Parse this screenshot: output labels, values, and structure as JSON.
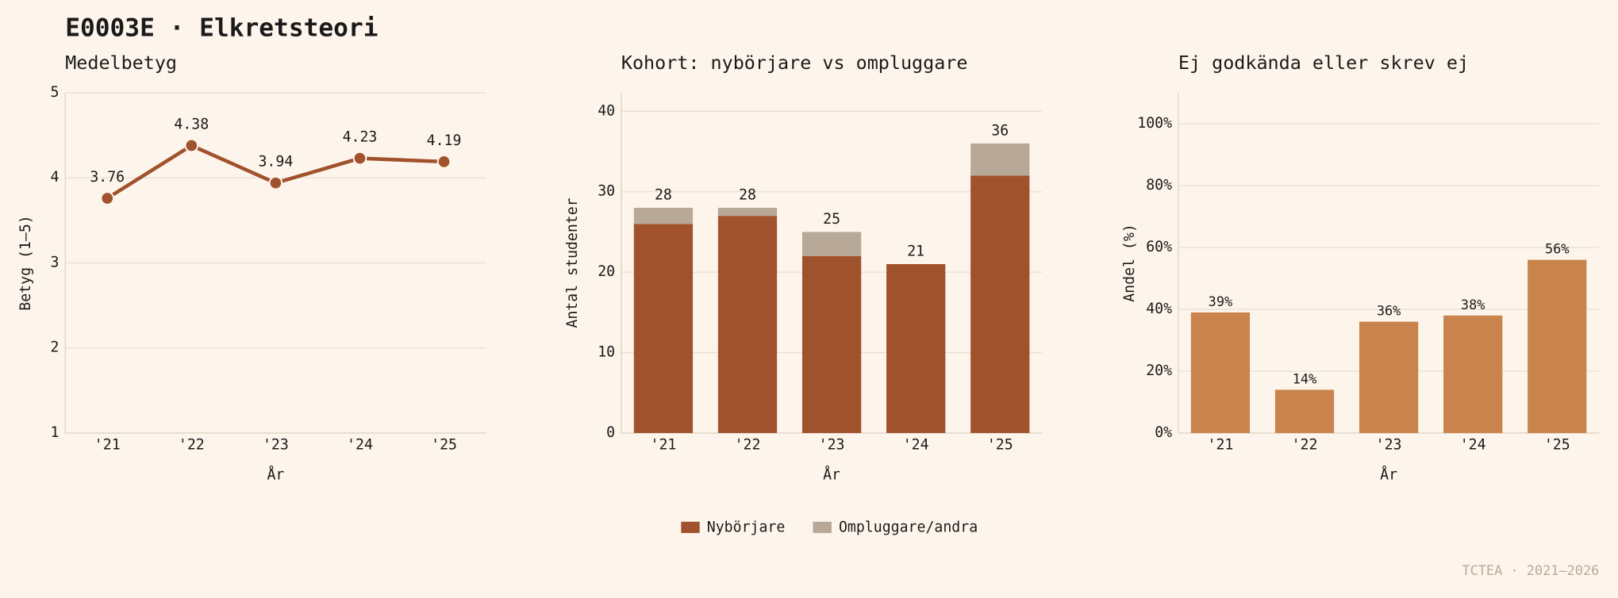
{
  "title": "E0003E · Elkretsteori",
  "footer": "TCTEA · 2021–2026",
  "chart_data": [
    {
      "type": "line",
      "title": "Medelbetyg",
      "categories": [
        "'21",
        "'22",
        "'23",
        "'24",
        "'25"
      ],
      "values": [
        3.76,
        4.38,
        3.94,
        4.23,
        4.19
      ],
      "color": "#a0522d",
      "ylim": [
        1,
        5
      ],
      "yticks": [
        1,
        2,
        3,
        4,
        5
      ],
      "ylabel": "Betyg (1–5)",
      "xlabel": "År",
      "grid": true
    },
    {
      "type": "stacked_bar",
      "title": "Kohort: nybörjare vs ompluggare",
      "categories": [
        "'21",
        "'22",
        "'23",
        "'24",
        "'25"
      ],
      "series": [
        {
          "name": "Nybörjare",
          "color": "#a0522d",
          "values": [
            26,
            27,
            22,
            21,
            32
          ]
        },
        {
          "name": "Ompluggare/andra",
          "color": "#b8a898",
          "values": [
            2,
            1,
            3,
            0,
            4
          ]
        }
      ],
      "totals": [
        28,
        28,
        25,
        21,
        36
      ],
      "ylim": [
        0,
        42.3
      ],
      "yticks": [
        0,
        10,
        20,
        30,
        40
      ],
      "ylabel": "Antal studenter",
      "xlabel": "År",
      "grid": true,
      "legend": "bottom"
    },
    {
      "type": "bar",
      "title": "Ej godkända eller skrev ej",
      "categories": [
        "'21",
        "'22",
        "'23",
        "'24",
        "'25"
      ],
      "values": [
        39,
        14,
        36,
        38,
        56
      ],
      "value_labels": [
        "39%",
        "14%",
        "36%",
        "38%",
        "56%"
      ],
      "color": "#c8844c",
      "ylim": [
        0,
        110
      ],
      "yticks": [
        {
          "value": 0,
          "label": "0%"
        },
        {
          "value": 20,
          "label": "20%"
        },
        {
          "value": 40,
          "label": "40%"
        },
        {
          "value": 60,
          "label": "60%"
        },
        {
          "value": 80,
          "label": "80%"
        },
        {
          "value": 100,
          "label": "100%"
        }
      ],
      "ylabel": "Andel (%)",
      "xlabel": "År",
      "grid": true
    }
  ]
}
